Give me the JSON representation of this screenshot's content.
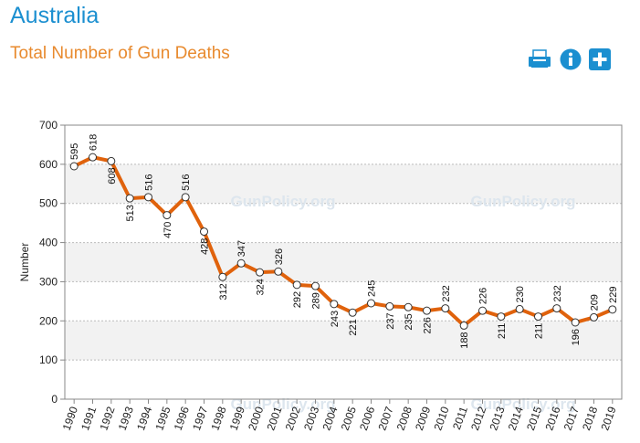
{
  "header": {
    "country": "Australia",
    "toolbar": {
      "print_icon": "printer-icon",
      "info_icon": "info-icon",
      "add_icon": "plus-icon",
      "color": "#1b8fd0"
    }
  },
  "watermark": "GunPolicy.org",
  "chart_data": {
    "type": "line",
    "title": "Total Number of Gun Deaths",
    "ylabel": "Number",
    "xlabel": "",
    "ylim": [
      0,
      700
    ],
    "y_ticks": [
      0,
      100,
      200,
      300,
      400,
      500,
      600,
      700
    ],
    "grid": true,
    "categories": [
      "1990",
      "1991",
      "1992",
      "1993",
      "1994",
      "1995",
      "1996",
      "1997",
      "1998",
      "1999",
      "2000",
      "2001",
      "2002",
      "2003",
      "2004",
      "2005",
      "2006",
      "2007",
      "2008",
      "2009",
      "2010",
      "2011",
      "2012",
      "2013",
      "2014",
      "2015",
      "2016",
      "2017",
      "2018",
      "2019"
    ],
    "series": [
      {
        "values": [
          595,
          618,
          608,
          513,
          516,
          470,
          516,
          428,
          312,
          347,
          324,
          326,
          292,
          289,
          243,
          221,
          245,
          237,
          235,
          226,
          232,
          188,
          226,
          211,
          230,
          211,
          232,
          196,
          209,
          229
        ],
        "color": "#e0620c"
      }
    ],
    "label_positions": [
      "above",
      "above",
      "below",
      "below",
      "above",
      "below",
      "above",
      "below",
      "below",
      "above",
      "below",
      "above",
      "below",
      "below",
      "below",
      "below",
      "above",
      "below",
      "below",
      "below",
      "above",
      "below",
      "above",
      "below",
      "above",
      "below",
      "above",
      "below",
      "above",
      "above"
    ]
  }
}
